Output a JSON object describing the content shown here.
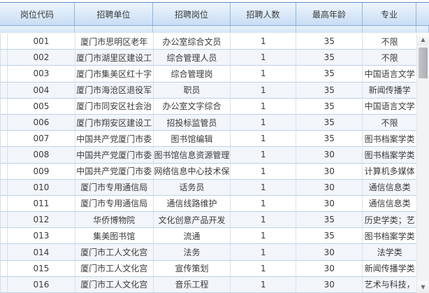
{
  "table": {
    "columns": [
      "岗位代码",
      "招聘单位",
      "招聘岗位",
      "招聘人数",
      "最高年龄",
      "专业"
    ],
    "rows": [
      {
        "code": "001",
        "unit": "厦门市思明区老年",
        "position": "办公室综合文员",
        "count": "1",
        "max_age": "35",
        "major": "不限"
      },
      {
        "code": "002",
        "unit": "厦门市湖里区建设工",
        "position": "综合管理人员",
        "count": "1",
        "max_age": "35",
        "major": "不限"
      },
      {
        "code": "003",
        "unit": "厦门市集美区红十字",
        "position": "综合管理岗",
        "count": "1",
        "max_age": "35",
        "major": "中国语言文学"
      },
      {
        "code": "004",
        "unit": "厦门市海沧区退役军",
        "position": "职员",
        "count": "1",
        "max_age": "35",
        "major": "新闻传播学"
      },
      {
        "code": "005",
        "unit": "厦门市同安区社会治",
        "position": "办公室文字综合",
        "count": "1",
        "max_age": "35",
        "major": "中国语言文学"
      },
      {
        "code": "006",
        "unit": "厦门市翔安区建设工",
        "position": "招投标监管员",
        "count": "1",
        "max_age": "35",
        "major": "不限"
      },
      {
        "code": "007",
        "unit": "中国共产党厦门市委",
        "position": "图书馆编辑",
        "count": "1",
        "max_age": "35",
        "major": "图书档案学类"
      },
      {
        "code": "008",
        "unit": "中国共产党厦门市委",
        "position": "图书馆信息资源管理",
        "count": "1",
        "max_age": "30",
        "major": "图书档案学类"
      },
      {
        "code": "009",
        "unit": "中国共产党厦门市委",
        "position": "网络信息中心技术保",
        "count": "1",
        "max_age": "30",
        "major": "计算机多媒体"
      },
      {
        "code": "010",
        "unit": "厦门市专用通信局",
        "position": "话务员",
        "count": "1",
        "max_age": "30",
        "major": "通信信息类"
      },
      {
        "code": "011",
        "unit": "厦门市专用通信局",
        "position": "通信线路维护",
        "count": "1",
        "max_age": "30",
        "major": "通信信息类"
      },
      {
        "code": "012",
        "unit": "华侨博物院",
        "position": "文化创意产品开发",
        "count": "1",
        "max_age": "35",
        "major": "历史学类；艺"
      },
      {
        "code": "013",
        "unit": "集美图书馆",
        "position": "流通",
        "count": "1",
        "max_age": "35",
        "major": "图书档案学类"
      },
      {
        "code": "014",
        "unit": "厦门市工人文化宫",
        "position": "法务",
        "count": "1",
        "max_age": "30",
        "major": "法学类"
      },
      {
        "code": "015",
        "unit": "厦门市工人文化宫",
        "position": "宣传策划",
        "count": "1",
        "max_age": "30",
        "major": "新闻传播学类"
      },
      {
        "code": "016",
        "unit": "厦门市工人文化宫",
        "position": "音乐工程",
        "count": "1",
        "max_age": "30",
        "major": "艺术与科技，"
      }
    ]
  },
  "scrollbar": {
    "up_arrow": "▲",
    "down_arrow": "▼"
  },
  "colors": {
    "header_border_top": "#5591cf",
    "header_gradient_start": "#eef5fd",
    "header_gradient_end": "#c8ddf4",
    "header_divider": "#8cb6de",
    "row_divider": "#bcd2ea",
    "alt_row_bg": "#f2f5fa",
    "text": "#3a3a3a",
    "scrollbar_thumb": "#b4b7bc"
  }
}
